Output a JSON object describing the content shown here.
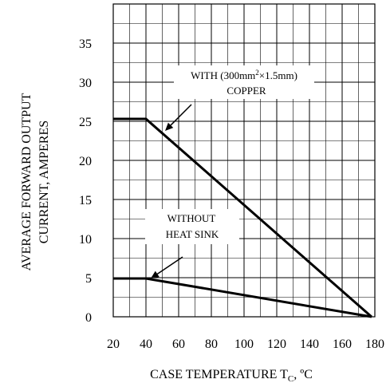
{
  "chart_data": {
    "type": "line",
    "xlabel": "CASE TEMPERATURE T",
    "xlabel_sub": "C",
    "xlabel_suffix": ", ºC",
    "ylabel_line1": "AVERAGE FORWARD OUTPUT",
    "ylabel_line2": "CURRENT, AMPERES",
    "xlim": [
      20,
      180
    ],
    "ylim": [
      0,
      40
    ],
    "x_ticks": [
      20,
      40,
      60,
      80,
      100,
      120,
      140,
      160,
      180
    ],
    "y_ticks": [
      0,
      5,
      10,
      15,
      20,
      25,
      30,
      35
    ],
    "x_ticks_minor": [
      30,
      50,
      70,
      90,
      110,
      130,
      150,
      170
    ],
    "y_ticks_minor": [
      2.5,
      7.5,
      12.5,
      17.5,
      22.5,
      27.5,
      32.5,
      37.5
    ],
    "grid": true,
    "series": [
      {
        "name": "WITH (300mm²×1.5mm) COPPER",
        "x": [
          20,
          40,
          178
        ],
        "y": [
          25.3,
          25.3,
          0
        ]
      },
      {
        "name": "WITHOUT HEAT SINK",
        "x": [
          20,
          40,
          178
        ],
        "y": [
          4.9,
          4.9,
          0
        ]
      }
    ],
    "annotations": [
      {
        "line1": "WITH (300mm",
        "sup": "2",
        "line1_rest": "×1.5mm)",
        "line2": "COPPER"
      },
      {
        "line1": "WITHOUT",
        "line2": "HEAT SINK"
      }
    ]
  }
}
